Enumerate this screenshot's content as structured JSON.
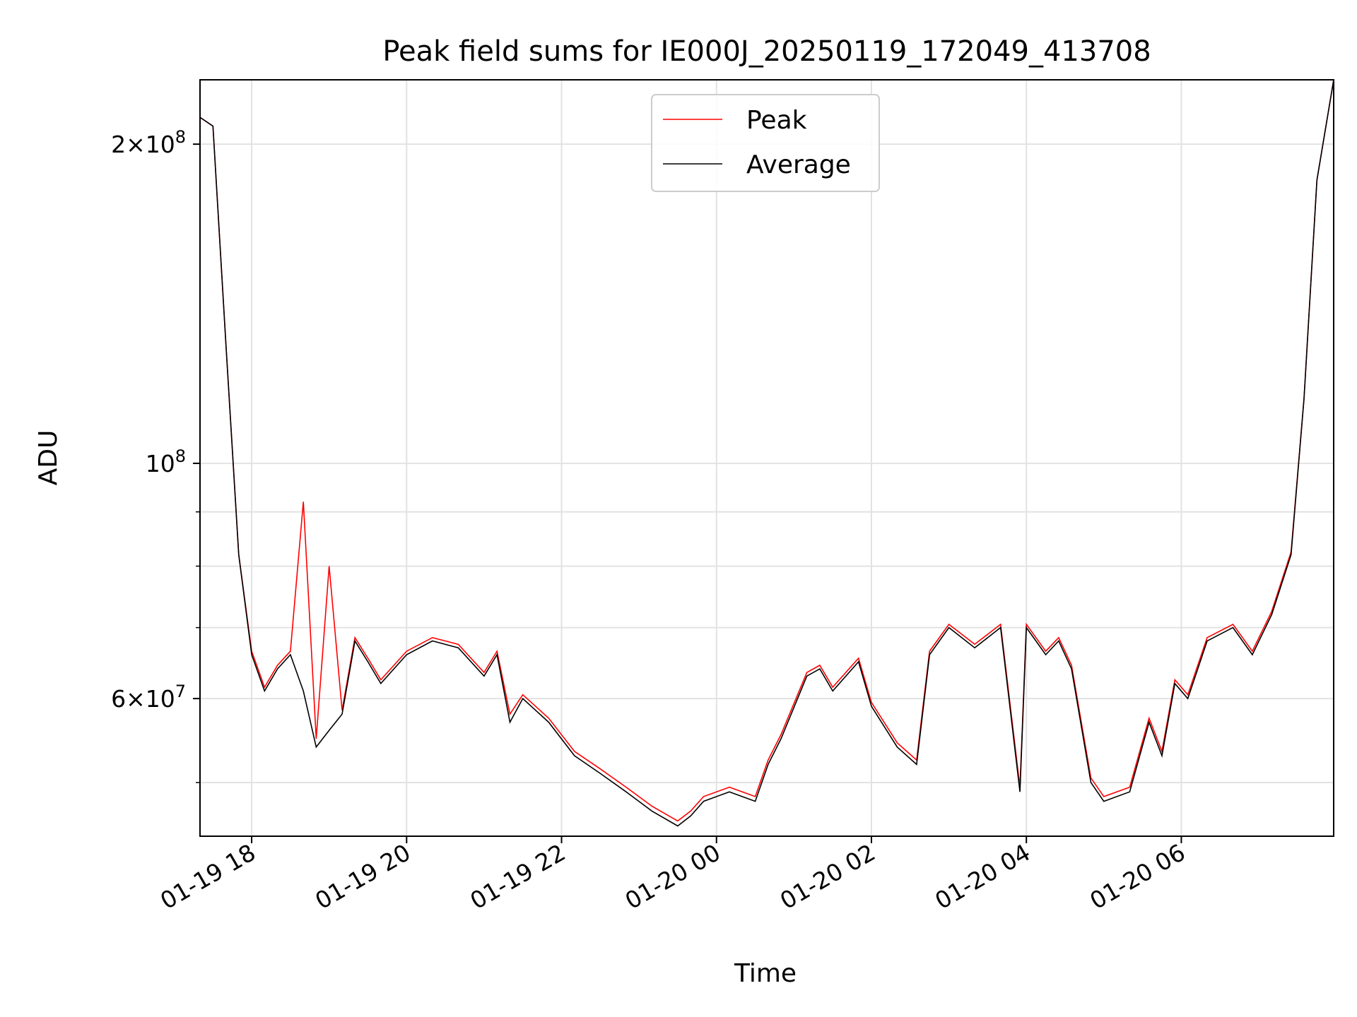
{
  "chart_data": {
    "type": "line",
    "title": "Peak field sums for IE000J_20250119_172049_413708",
    "xlabel": "Time",
    "ylabel": "ADU",
    "yscale": "log",
    "xlim": [
      "2025-01-19 17:20",
      "2025-01-20 07:58"
    ],
    "ylim": [
      44500000,
      230000000
    ],
    "grid": true,
    "legend_position": "top-center",
    "x_tick_labels": [
      "01-19 18",
      "01-19 20",
      "01-19 22",
      "01-20 00",
      "01-20 02",
      "01-20 04",
      "01-20 06"
    ],
    "y_tick_labels": [
      {
        "value": 200000000,
        "mantissa": "2×10",
        "exp": "8"
      },
      {
        "value": 100000000,
        "mantissa": "10",
        "exp": "8"
      },
      {
        "value": 60000000,
        "mantissa": "6×10",
        "exp": "7"
      }
    ],
    "y_minor_ticks": [
      50000000,
      70000000,
      80000000,
      90000000
    ],
    "series": [
      {
        "name": "Peak",
        "color": "#ff0000"
      },
      {
        "name": "Average",
        "color": "#000000"
      }
    ],
    "x": [
      "2025-01-19 17:20",
      "2025-01-19 17:30",
      "2025-01-19 17:40",
      "2025-01-19 17:50",
      "2025-01-19 18:00",
      "2025-01-19 18:10",
      "2025-01-19 18:20",
      "2025-01-19 18:30",
      "2025-01-19 18:40",
      "2025-01-19 18:50",
      "2025-01-19 19:00",
      "2025-01-19 19:10",
      "2025-01-19 19:20",
      "2025-01-19 19:30",
      "2025-01-19 19:40",
      "2025-01-19 20:00",
      "2025-01-19 20:20",
      "2025-01-19 20:40",
      "2025-01-19 21:00",
      "2025-01-19 21:10",
      "2025-01-19 21:20",
      "2025-01-19 21:30",
      "2025-01-19 21:50",
      "2025-01-19 22:10",
      "2025-01-19 22:30",
      "2025-01-19 22:50",
      "2025-01-19 23:10",
      "2025-01-19 23:30",
      "2025-01-19 23:40",
      "2025-01-19 23:50",
      "2025-01-20 00:10",
      "2025-01-20 00:30",
      "2025-01-20 00:40",
      "2025-01-20 00:50",
      "2025-01-20 01:10",
      "2025-01-20 01:20",
      "2025-01-20 01:30",
      "2025-01-20 01:50",
      "2025-01-20 02:00",
      "2025-01-20 02:20",
      "2025-01-20 02:35",
      "2025-01-20 02:45",
      "2025-01-20 03:00",
      "2025-01-20 03:20",
      "2025-01-20 03:40",
      "2025-01-20 03:55",
      "2025-01-20 04:00",
      "2025-01-20 04:15",
      "2025-01-20 04:25",
      "2025-01-20 04:35",
      "2025-01-20 04:50",
      "2025-01-20 05:00",
      "2025-01-20 05:20",
      "2025-01-20 05:35",
      "2025-01-20 05:45",
      "2025-01-20 05:55",
      "2025-01-20 06:05",
      "2025-01-20 06:20",
      "2025-01-20 06:40",
      "2025-01-20 06:55",
      "2025-01-20 07:10",
      "2025-01-20 07:25",
      "2025-01-20 07:35",
      "2025-01-20 07:45",
      "2025-01-20 07:58"
    ],
    "average": [
      212000000,
      208000000,
      130000000,
      82000000,
      66000000,
      61000000,
      64000000,
      66000000,
      61000000,
      54000000,
      56000000,
      58000000,
      68000000,
      65000000,
      62000000,
      66000000,
      68000000,
      67000000,
      63000000,
      66000000,
      57000000,
      60000000,
      57000000,
      53000000,
      51000000,
      49000000,
      47000000,
      45500000,
      46500000,
      48000000,
      49000000,
      48000000,
      52000000,
      55000000,
      63000000,
      64000000,
      61000000,
      65000000,
      59000000,
      54000000,
      52000000,
      66000000,
      70000000,
      67000000,
      70000000,
      49000000,
      70000000,
      66000000,
      68000000,
      64000000,
      50000000,
      48000000,
      49000000,
      57000000,
      53000000,
      62000000,
      60000000,
      68000000,
      70000000,
      66000000,
      72000000,
      82000000,
      115000000,
      185000000,
      230000000
    ],
    "peak": [
      212000000,
      208000000,
      130000000,
      82000000,
      66500000,
      61500000,
      64500000,
      66500000,
      92000000,
      55000000,
      80000000,
      58500000,
      68500000,
      65500000,
      62500000,
      66500000,
      68500000,
      67500000,
      63500000,
      66500000,
      58000000,
      60500000,
      57500000,
      53500000,
      51500000,
      49500000,
      47500000,
      46000000,
      47000000,
      48500000,
      49500000,
      48500000,
      52500000,
      55500000,
      63500000,
      64500000,
      61500000,
      65500000,
      59500000,
      54500000,
      52500000,
      66500000,
      70500000,
      67500000,
      70500000,
      49500000,
      70500000,
      66500000,
      68500000,
      64500000,
      50500000,
      48500000,
      49500000,
      57500000,
      53500000,
      62500000,
      60500000,
      68500000,
      70500000,
      66500000,
      72500000,
      82500000,
      115000000,
      185000000,
      230000000
    ]
  }
}
